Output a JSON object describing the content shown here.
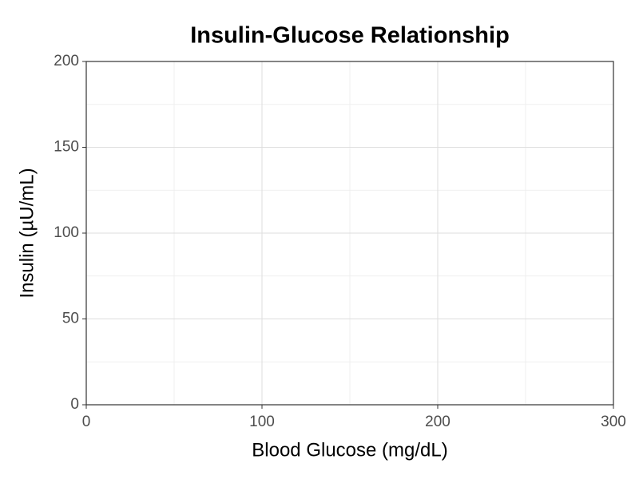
{
  "chart_data": {
    "type": "scatter",
    "title": "Insulin-Glucose Relationship",
    "x_label": "Blood Glucose (mg/dL)",
    "y_label": "Insulin (µU/mL)",
    "xlim": [
      0,
      300
    ],
    "xticks": [
      0,
      100,
      200,
      300
    ],
    "ylim": [
      0,
      200
    ],
    "yticks": [
      0,
      50,
      100,
      150,
      200
    ],
    "grid": true
  }
}
